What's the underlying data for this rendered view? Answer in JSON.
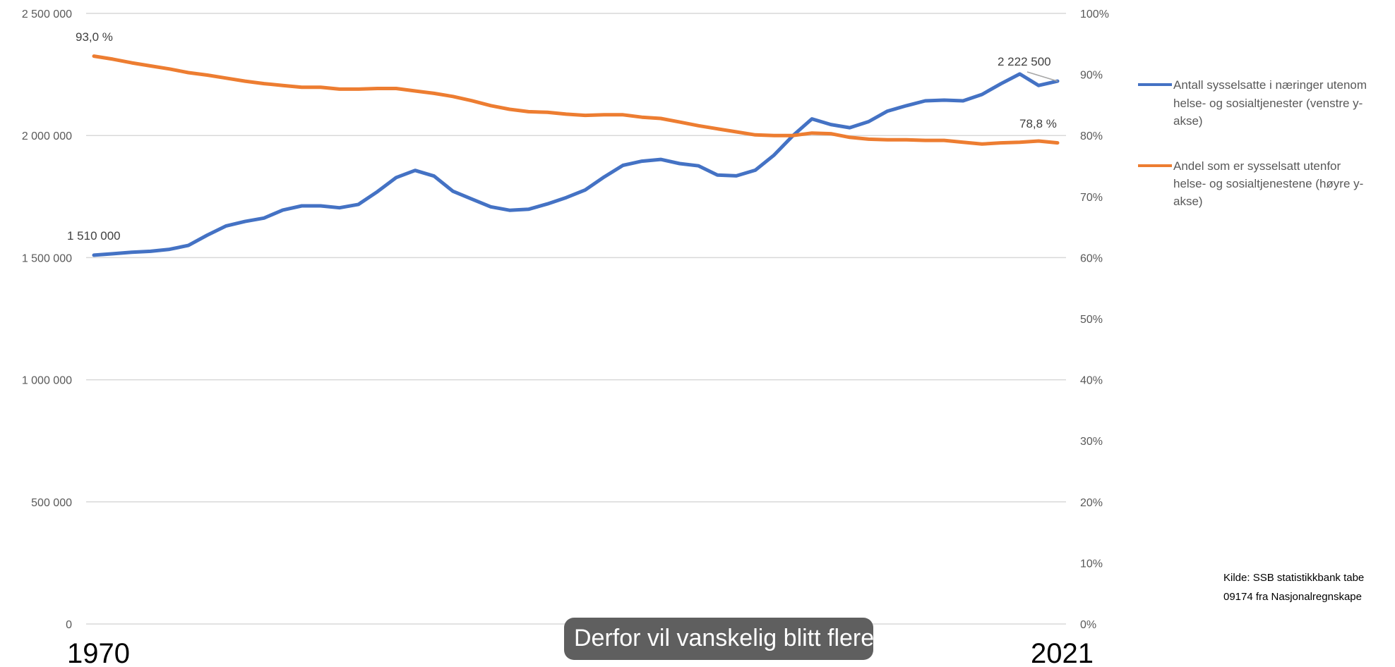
{
  "chart_data": {
    "type": "line",
    "x_range": [
      1970,
      2021
    ],
    "x_tick_labels": [
      "1970",
      "2021"
    ],
    "y_left": {
      "range": [
        0,
        2500000
      ],
      "tick_labels": [
        "0",
        "500 000",
        "1 000 000",
        "1 500 000",
        "2 000 000",
        "2 500 000"
      ]
    },
    "y_right": {
      "range": [
        0,
        100
      ],
      "tick_labels": [
        "0%",
        "10%",
        "20%",
        "30%",
        "40%",
        "50%",
        "60%",
        "70%",
        "80%",
        "90%",
        "100%"
      ]
    },
    "grid": true,
    "legend_placement": "right",
    "series": [
      {
        "name": "Antall sysselsatte i næringer utenom helse- og sosialtjenester (venstre y-akse)",
        "legend_lines": [
          "Antall sysselsatte i næringer utenom",
          "helse- og sosialtjenester (venstre y-",
          "akse)"
        ],
        "axis": "left",
        "color": "#4472C4",
        "x": [
          1970,
          1971,
          1972,
          1973,
          1974,
          1975,
          1976,
          1977,
          1978,
          1979,
          1980,
          1981,
          1982,
          1983,
          1984,
          1985,
          1986,
          1987,
          1988,
          1989,
          1990,
          1991,
          1992,
          1993,
          1994,
          1995,
          1996,
          1997,
          1998,
          1999,
          2000,
          2001,
          2002,
          2003,
          2004,
          2005,
          2006,
          2007,
          2008,
          2009,
          2010,
          2011,
          2012,
          2013,
          2014,
          2015,
          2016,
          2017,
          2018,
          2019,
          2020,
          2021
        ],
        "values": [
          1510000,
          1516000,
          1522000,
          1526000,
          1534000,
          1550000,
          1592000,
          1630000,
          1648000,
          1662000,
          1695000,
          1712000,
          1712000,
          1704000,
          1718000,
          1770000,
          1828000,
          1857000,
          1834000,
          1772000,
          1740000,
          1708000,
          1694000,
          1698000,
          1720000,
          1746000,
          1777000,
          1830000,
          1878000,
          1895000,
          1902000,
          1885000,
          1876000,
          1838000,
          1835000,
          1858000,
          1920000,
          2000000,
          2068000,
          2045000,
          2032000,
          2057000,
          2100000,
          2122000,
          2142000,
          2145000,
          2142000,
          2168000,
          2212000,
          2252000,
          2205000,
          2222500
        ],
        "data_labels": [
          {
            "x": 1970,
            "text": "1 510 000"
          },
          {
            "x": 2021,
            "text": "2 222 500"
          }
        ]
      },
      {
        "name": "Andel som er sysselsatt utenfor helse- og sosialtjenestene (høyre y-akse)",
        "legend_lines": [
          "Andel som er sysselsatt utenfor",
          "helse- og sosialtjenestene (høyre y-",
          "akse)"
        ],
        "axis": "right",
        "color": "#ED7D31",
        "x": [
          1970,
          1971,
          1972,
          1973,
          1974,
          1975,
          1976,
          1977,
          1978,
          1979,
          1980,
          1981,
          1982,
          1983,
          1984,
          1985,
          1986,
          1987,
          1988,
          1989,
          1990,
          1991,
          1992,
          1993,
          1994,
          1995,
          1996,
          1997,
          1998,
          1999,
          2000,
          2001,
          2002,
          2003,
          2004,
          2005,
          2006,
          2007,
          2008,
          2009,
          2010,
          2011,
          2012,
          2013,
          2014,
          2015,
          2016,
          2017,
          2018,
          2019,
          2020,
          2021
        ],
        "values": [
          93.0,
          92.5,
          91.9,
          91.4,
          90.9,
          90.3,
          89.9,
          89.4,
          88.9,
          88.5,
          88.2,
          87.9,
          87.9,
          87.6,
          87.6,
          87.7,
          87.7,
          87.3,
          86.9,
          86.4,
          85.7,
          84.9,
          84.3,
          83.9,
          83.8,
          83.5,
          83.3,
          83.4,
          83.4,
          83.0,
          82.8,
          82.2,
          81.6,
          81.1,
          80.6,
          80.1,
          80.0,
          80.0,
          80.4,
          80.3,
          79.7,
          79.4,
          79.3,
          79.3,
          79.2,
          79.2,
          78.9,
          78.6,
          78.8,
          78.9,
          79.1,
          78.8
        ],
        "data_labels": [
          {
            "x": 1970,
            "text": "93,0 %"
          },
          {
            "x": 2021,
            "text": "78,8 %"
          }
        ]
      }
    ],
    "source_lines": [
      "Kilde: SSB statistikkbank tabe",
      "09174 fra Nasjonalregnskape"
    ]
  },
  "overlay": {
    "caption_text": "Derfor vil vanskelig blitt flere"
  }
}
